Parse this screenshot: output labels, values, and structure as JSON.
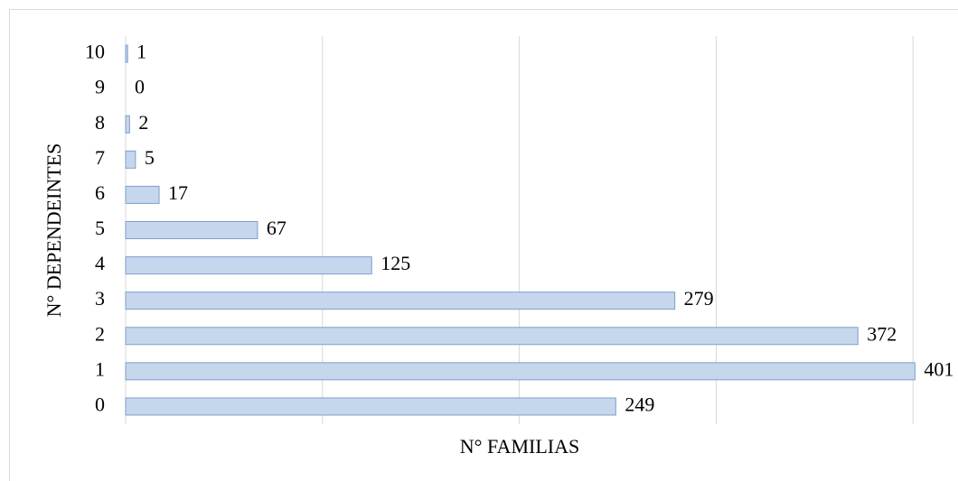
{
  "chart_data": {
    "type": "barh",
    "xlabel": "N° FAMILIAS",
    "ylabel": "N° DEPENDEINTES",
    "categories": [
      "0",
      "1",
      "2",
      "3",
      "4",
      "5",
      "6",
      "7",
      "8",
      "9",
      "10"
    ],
    "values": [
      249,
      401,
      372,
      279,
      125,
      67,
      17,
      5,
      2,
      0,
      1
    ],
    "color": "#c6d6ec",
    "edge_color": "#7ba0cd",
    "xlim": [
      0,
      405
    ],
    "xticks": [
      0,
      100,
      200,
      300,
      400
    ],
    "grid": true
  }
}
